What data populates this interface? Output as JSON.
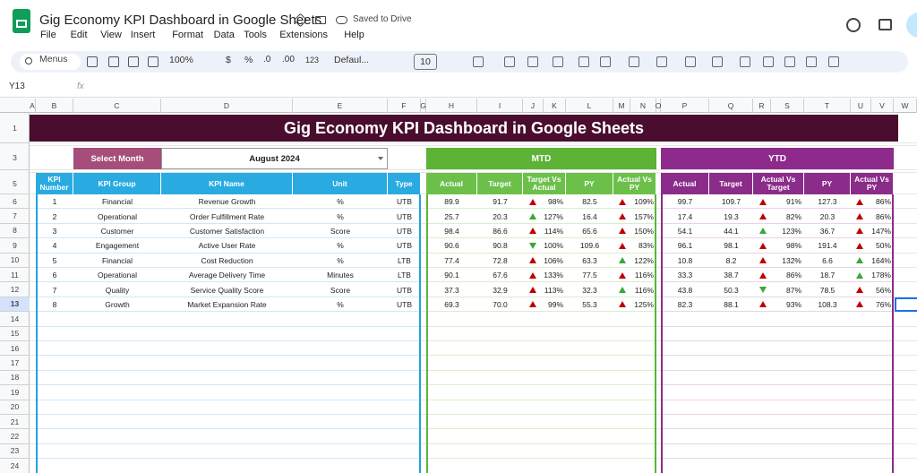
{
  "app": {
    "title": "Gig Economy KPI Dashboard in Google Sheets",
    "status": "Saved to Drive",
    "menus": [
      "File",
      "Edit",
      "View",
      "Insert",
      "Format",
      "Data",
      "Tools",
      "Extensions",
      "Help"
    ]
  },
  "toolbar": {
    "search": "Menus",
    "zoom": "100%",
    "currency": "$",
    "percent": "%",
    "dec_less": ".0",
    "dec_more": ".00",
    "number_format": "123",
    "font": "Defaul...",
    "font_size": "10"
  },
  "formula_bar": {
    "cell": "Y13",
    "fx": "fx"
  },
  "grid": {
    "columns": [
      "A",
      "B",
      "C",
      "D",
      "E",
      "F",
      "G",
      "H",
      "I",
      "J",
      "K",
      "L",
      "M",
      "N",
      "O",
      "P",
      "Q",
      "R",
      "S",
      "T",
      "U",
      "V",
      "W"
    ],
    "rows": [
      1,
      3,
      5,
      6,
      7,
      8,
      9,
      10,
      11,
      12,
      13,
      14,
      15,
      16,
      17,
      18,
      19,
      20,
      21,
      22,
      23,
      24
    ]
  },
  "dashboard": {
    "title": "Gig Economy KPI Dashboard in Google Sheets",
    "select_label": "Select Month",
    "month": "August 2024",
    "mtd_label": "MTD",
    "ytd_label": "YTD",
    "left_headers": [
      "KPI Number",
      "KPI Group",
      "KPI Name",
      "Unit",
      "Type"
    ],
    "mtd_headers": [
      "Actual",
      "Target",
      "Target Vs Actual",
      "PY",
      "Actual Vs PY"
    ],
    "ytd_headers": [
      "Actual",
      "Target",
      "Actual Vs Target",
      "PY",
      "Actual Vs PY"
    ],
    "kpis": [
      {
        "number": "1",
        "group": "Financial",
        "name": "Revenue Growth",
        "unit": "%",
        "type": "UTB",
        "mtd": {
          "actual": "89.9",
          "target": "91.7",
          "vs_target": {
            "text": "98%",
            "arrow": "up",
            "color": "#c00000"
          },
          "py": "82.5",
          "vs_py": {
            "text": "109%",
            "arrow": "up",
            "color": "#c00000"
          }
        },
        "ytd": {
          "actual": "99.7",
          "target": "109.7",
          "vs_target": {
            "text": "91%",
            "arrow": "up",
            "color": "#c00000"
          },
          "py": "127.3",
          "vs_py": {
            "text": "86%",
            "arrow": "up",
            "color": "#c00000"
          }
        }
      },
      {
        "number": "2",
        "group": "Operational",
        "name": "Order Fulfillment Rate",
        "unit": "%",
        "type": "UTB",
        "mtd": {
          "actual": "25.7",
          "target": "20.3",
          "vs_target": {
            "text": "127%",
            "arrow": "up",
            "color": "#38a838"
          },
          "py": "16.4",
          "vs_py": {
            "text": "157%",
            "arrow": "up",
            "color": "#c00000"
          }
        },
        "ytd": {
          "actual": "17.4",
          "target": "19.3",
          "vs_target": {
            "text": "82%",
            "arrow": "up",
            "color": "#c00000"
          },
          "py": "20.3",
          "vs_py": {
            "text": "86%",
            "arrow": "up",
            "color": "#c00000"
          }
        }
      },
      {
        "number": "3",
        "group": "Customer",
        "name": "Customer Satisfaction",
        "unit": "Score",
        "type": "UTB",
        "mtd": {
          "actual": "98.4",
          "target": "86.6",
          "vs_target": {
            "text": "114%",
            "arrow": "up",
            "color": "#c00000"
          },
          "py": "65.6",
          "vs_py": {
            "text": "150%",
            "arrow": "up",
            "color": "#c00000"
          }
        },
        "ytd": {
          "actual": "54.1",
          "target": "44.1",
          "vs_target": {
            "text": "123%",
            "arrow": "up",
            "color": "#38a838"
          },
          "py": "36.7",
          "vs_py": {
            "text": "147%",
            "arrow": "up",
            "color": "#c00000"
          }
        }
      },
      {
        "number": "4",
        "group": "Engagement",
        "name": "Active User Rate",
        "unit": "%",
        "type": "UTB",
        "mtd": {
          "actual": "90.6",
          "target": "90.8",
          "vs_target": {
            "text": "100%",
            "arrow": "down",
            "color": "#38a838"
          },
          "py": "109.6",
          "vs_py": {
            "text": "83%",
            "arrow": "up",
            "color": "#c00000"
          }
        },
        "ytd": {
          "actual": "96.1",
          "target": "98.1",
          "vs_target": {
            "text": "98%",
            "arrow": "up",
            "color": "#c00000"
          },
          "py": "191.4",
          "vs_py": {
            "text": "50%",
            "arrow": "up",
            "color": "#c00000"
          }
        }
      },
      {
        "number": "5",
        "group": "Financial",
        "name": "Cost Reduction",
        "unit": "%",
        "type": "LTB",
        "mtd": {
          "actual": "77.4",
          "target": "72.8",
          "vs_target": {
            "text": "106%",
            "arrow": "up",
            "color": "#c00000"
          },
          "py": "63.3",
          "vs_py": {
            "text": "122%",
            "arrow": "up",
            "color": "#38a838"
          }
        },
        "ytd": {
          "actual": "10.8",
          "target": "8.2",
          "vs_target": {
            "text": "132%",
            "arrow": "up",
            "color": "#c00000"
          },
          "py": "6.6",
          "vs_py": {
            "text": "164%",
            "arrow": "up",
            "color": "#38a838"
          }
        }
      },
      {
        "number": "6",
        "group": "Operational",
        "name": "Average Delivery Time",
        "unit": "Minutes",
        "type": "LTB",
        "mtd": {
          "actual": "90.1",
          "target": "67.6",
          "vs_target": {
            "text": "133%",
            "arrow": "up",
            "color": "#c00000"
          },
          "py": "77.5",
          "vs_py": {
            "text": "116%",
            "arrow": "up",
            "color": "#c00000"
          }
        },
        "ytd": {
          "actual": "33.3",
          "target": "38.7",
          "vs_target": {
            "text": "86%",
            "arrow": "up",
            "color": "#c00000"
          },
          "py": "18.7",
          "vs_py": {
            "text": "178%",
            "arrow": "up",
            "color": "#38a838"
          }
        }
      },
      {
        "number": "7",
        "group": "Quality",
        "name": "Service Quality Score",
        "unit": "Score",
        "type": "UTB",
        "mtd": {
          "actual": "37.3",
          "target": "32.9",
          "vs_target": {
            "text": "113%",
            "arrow": "up",
            "color": "#c00000"
          },
          "py": "32.3",
          "vs_py": {
            "text": "116%",
            "arrow": "up",
            "color": "#38a838"
          }
        },
        "ytd": {
          "actual": "43.8",
          "target": "50.3",
          "vs_target": {
            "text": "87%",
            "arrow": "down",
            "color": "#38a838"
          },
          "py": "78.5",
          "vs_py": {
            "text": "56%",
            "arrow": "up",
            "color": "#c00000"
          }
        }
      },
      {
        "number": "8",
        "group": "Growth",
        "name": "Market Expansion Rate",
        "unit": "%",
        "type": "UTB",
        "mtd": {
          "actual": "69.3",
          "target": "70.0",
          "vs_target": {
            "text": "99%",
            "arrow": "up",
            "color": "#c00000"
          },
          "py": "55.3",
          "vs_py": {
            "text": "125%",
            "arrow": "up",
            "color": "#c00000"
          }
        },
        "ytd": {
          "actual": "82.3",
          "target": "88.1",
          "vs_target": {
            "text": "93%",
            "arrow": "up",
            "color": "#c00000"
          },
          "py": "108.3",
          "vs_py": {
            "text": "76%",
            "arrow": "up",
            "color": "#c00000"
          }
        }
      }
    ]
  }
}
